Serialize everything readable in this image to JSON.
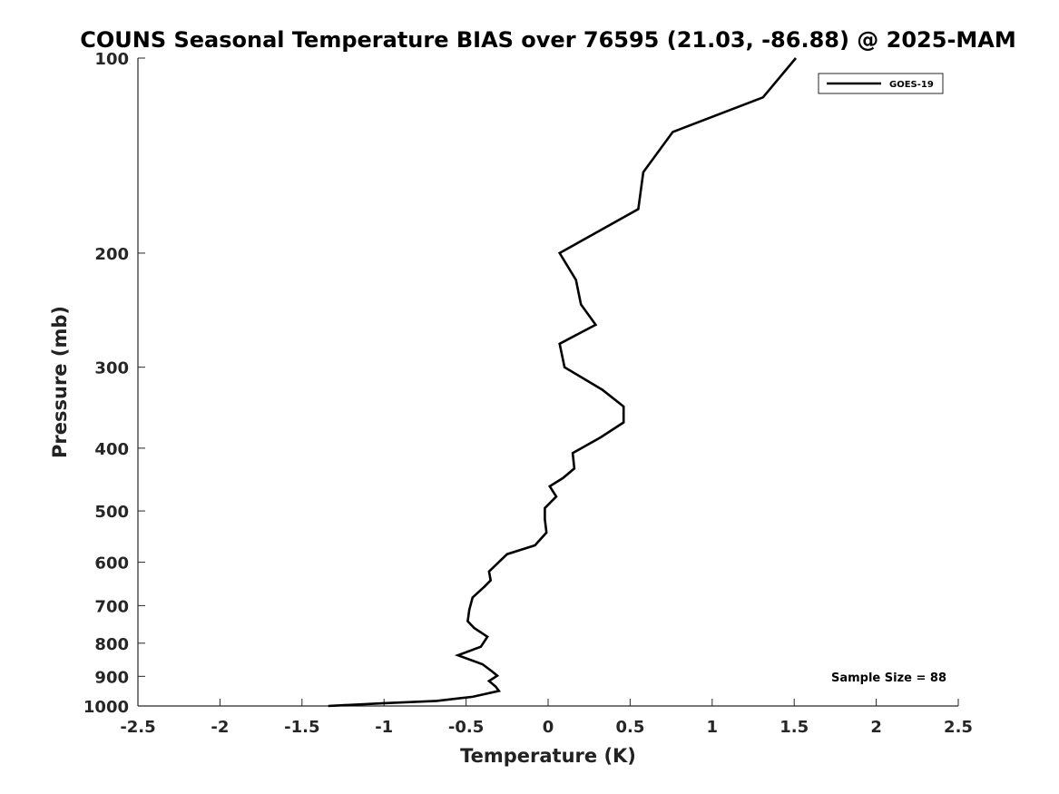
{
  "chart_data": {
    "type": "line",
    "title": "COUNS Seasonal Temperature BIAS over 76595 (21.03, -86.88) @ 2025-MAM",
    "xlabel": "Temperature (K)",
    "ylabel": "Pressure (mb)",
    "xlim": [
      -2.5,
      2.5
    ],
    "ylim": [
      1000,
      100
    ],
    "y_scale": "log",
    "x_ticks": [
      -2.5,
      -2,
      -1.5,
      -1,
      -0.5,
      0,
      0.5,
      1,
      1.5,
      2,
      2.5
    ],
    "x_tick_labels": [
      "-2.5",
      "-2",
      "-1.5",
      "-1",
      "-0.5",
      "0",
      "0.5",
      "1",
      "1.5",
      "2",
      "2.5"
    ],
    "y_ticks": [
      100,
      200,
      300,
      400,
      500,
      600,
      700,
      800,
      900,
      1000
    ],
    "y_tick_labels": [
      "100",
      "200",
      "300",
      "400",
      "500",
      "600",
      "700",
      "800",
      "900",
      "1000"
    ],
    "grid": false,
    "legend": {
      "position": "top-right",
      "entries": [
        "GOES-19"
      ]
    },
    "annotation": "Sample Size = 88",
    "series": [
      {
        "name": "GOES-19",
        "color": "#000000",
        "points": [
          [
            1.51,
            100
          ],
          [
            1.31,
            115
          ],
          [
            0.76,
            130
          ],
          [
            0.58,
            150
          ],
          [
            0.55,
            171
          ],
          [
            0.07,
            200
          ],
          [
            0.17,
            220
          ],
          [
            0.2,
            240
          ],
          [
            0.29,
            258
          ],
          [
            0.07,
            276
          ],
          [
            0.1,
            300
          ],
          [
            0.33,
            325
          ],
          [
            0.46,
            345
          ],
          [
            0.46,
            365
          ],
          [
            0.32,
            385
          ],
          [
            0.15,
            407
          ],
          [
            0.16,
            430
          ],
          [
            0.09,
            445
          ],
          [
            0.01,
            458
          ],
          [
            0.05,
            475
          ],
          [
            -0.02,
            495
          ],
          [
            -0.02,
            515
          ],
          [
            -0.01,
            540
          ],
          [
            -0.08,
            565
          ],
          [
            -0.25,
            583
          ],
          [
            -0.36,
            620
          ],
          [
            -0.35,
            640
          ],
          [
            -0.39,
            655
          ],
          [
            -0.46,
            680
          ],
          [
            -0.48,
            710
          ],
          [
            -0.49,
            740
          ],
          [
            -0.45,
            758
          ],
          [
            -0.37,
            782
          ],
          [
            -0.41,
            810
          ],
          [
            -0.55,
            835
          ],
          [
            -0.4,
            862
          ],
          [
            -0.34,
            885
          ],
          [
            -0.31,
            898
          ],
          [
            -0.36,
            915
          ],
          [
            -0.32,
            933
          ],
          [
            -0.3,
            948
          ],
          [
            -0.46,
            968
          ],
          [
            -0.68,
            982
          ],
          [
            -1.0,
            990
          ],
          [
            -1.34,
            1000
          ]
        ]
      }
    ]
  }
}
